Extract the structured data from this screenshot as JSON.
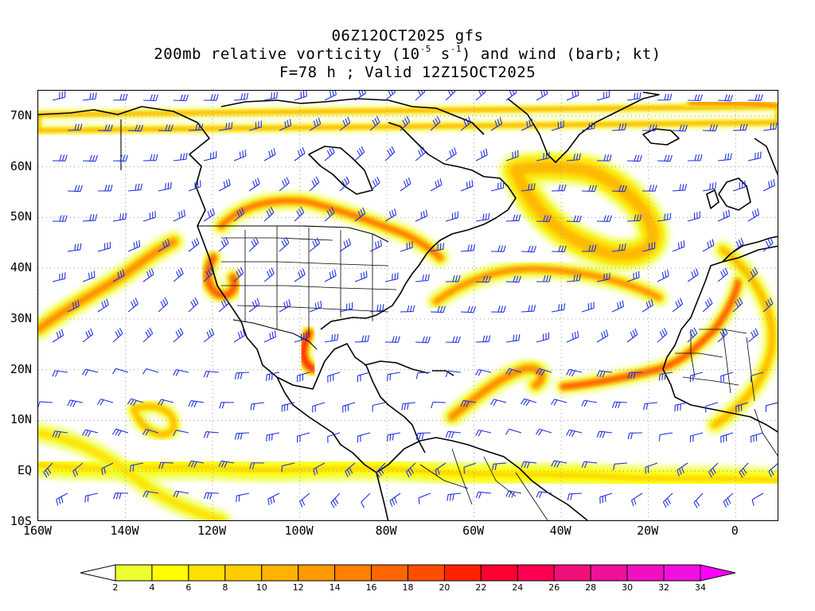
{
  "title": {
    "line1": "06Z12OCT2025 gfs",
    "line2_prefix": "200mb relative vorticity (10",
    "line2_exp1": "-5",
    "line2_mid": " s",
    "line2_exp2": "-1",
    "line2_suffix": ") and wind (barb; kt)",
    "line3": "F=78 h ; Valid 12Z15OCT2025"
  },
  "axes": {
    "lat_labels": [
      "70N",
      "60N",
      "50N",
      "40N",
      "30N",
      "20N",
      "10N",
      "EQ",
      "10S"
    ],
    "lon_labels": [
      "160W",
      "140W",
      "120W",
      "100W",
      "80W",
      "60W",
      "40W",
      "20W",
      "0"
    ],
    "lat_values": [
      70,
      60,
      50,
      40,
      30,
      20,
      10,
      0,
      -10
    ],
    "lon_values": [
      -160,
      -140,
      -120,
      -100,
      -80,
      -60,
      -40,
      -20,
      0
    ],
    "lon_range": [
      -160,
      10
    ],
    "lat_range": [
      -10,
      75
    ],
    "grid": "dotted"
  },
  "colorbar": {
    "labels": [
      "2",
      "4",
      "6",
      "8",
      "10",
      "12",
      "14",
      "16",
      "18",
      "20",
      "22",
      "24",
      "26",
      "28",
      "30",
      "32",
      "34"
    ],
    "colors": [
      "#eeff30",
      "#ffff00",
      "#ffe000",
      "#ffcc00",
      "#ffb300",
      "#ff9900",
      "#ff7f00",
      "#ff6600",
      "#ff4d00",
      "#ff2200",
      "#ff0033",
      "#ff0050",
      "#f0107a",
      "#f0109a",
      "#f010c0",
      "#f010e0"
    ],
    "units": "10^-5 s^-1"
  },
  "colors": {
    "barb": "#2030e0",
    "coast": "#000000",
    "grid": "#9a9a9a"
  }
}
